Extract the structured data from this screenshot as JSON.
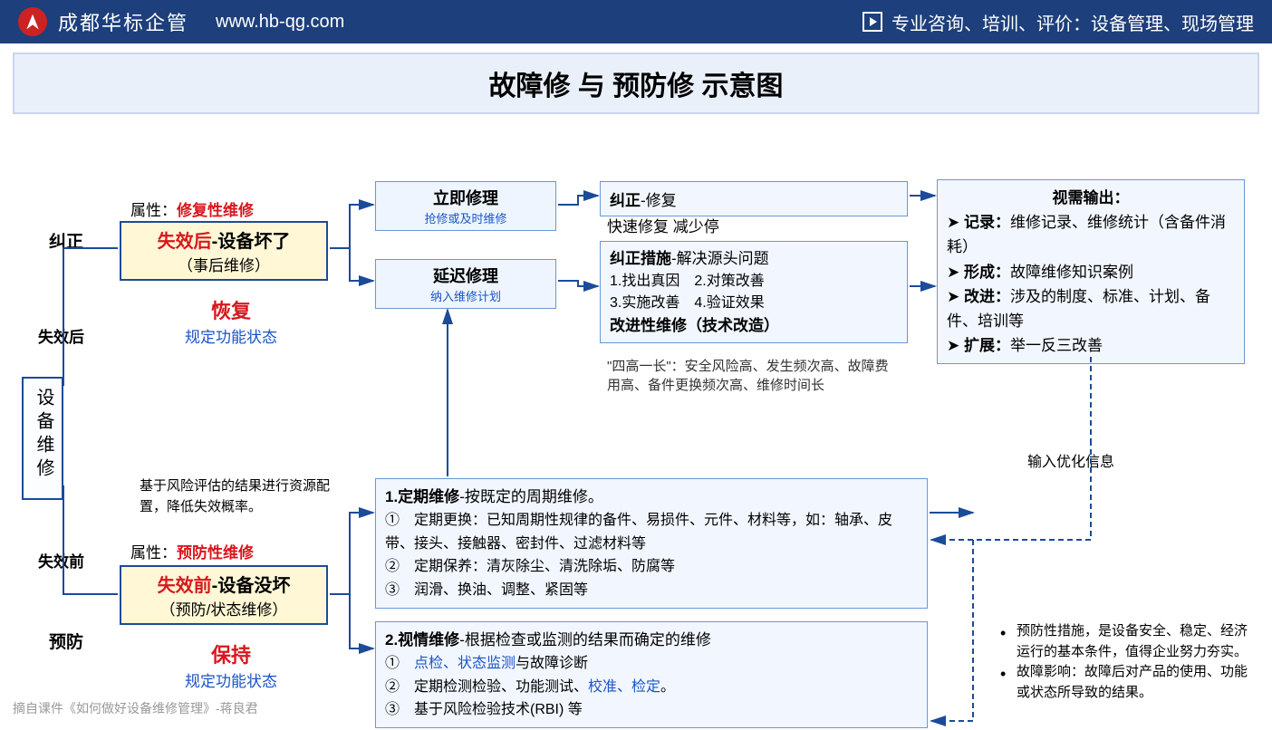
{
  "header": {
    "company": "成都华标企管",
    "url": "www.hb-qg.com",
    "right_text": "专业咨询、培训、评价：设备管理、现场管理"
  },
  "title": "故障修 与 预防修 示意图",
  "root": "设备维修",
  "branch_labels": {
    "upper": "失效后",
    "lower": "失效前"
  },
  "side_labels": {
    "correct": "纠正",
    "prevent": "预防"
  },
  "upper": {
    "attr_label": "属性：",
    "attr_value": "修复性维修",
    "box1_red": "失效后",
    "box1_tail": "-设备坏了",
    "box1_sub": "（事后维修）",
    "recover": "恢复",
    "recover_sub": "规定功能状态",
    "immediate": {
      "title": "立即修理",
      "sub": "抢修或及时维修"
    },
    "delayed": {
      "title": "延迟修理",
      "sub": "纳入维修计划"
    },
    "correct_fix_label": "纠正",
    "correct_fix_tail": "-修复",
    "correct_fix_sub": "快速修复 减少停",
    "correct_measure_label": "纠正措施",
    "correct_measure_tail": "-解决源头问题",
    "items": "1.找出真因　2.对策改善\n3.实施改善　4.验证效果",
    "improve": "改进性维修（技术改造）",
    "four_high": "\"四高一长\"：安全风险高、发生频次高、故障费用高、备件更换频次高、维修时间长"
  },
  "output": {
    "title": "视需输出：",
    "items": [
      {
        "b": "记录：",
        "t": "维修记录、维修统计（含备件消耗）"
      },
      {
        "b": "形成：",
        "t": "故障维修知识案例"
      },
      {
        "b": "改进：",
        "t": "涉及的制度、标准、计划、备件、培训等"
      },
      {
        "b": "扩展：",
        "t": "举一反三改善"
      }
    ],
    "feedback": "输入优化信息"
  },
  "lower": {
    "risk_note": "基于风险评估的结果进行资源配置，降低失效概率。",
    "attr_label": "属性：",
    "attr_value": "预防性维修",
    "box1_red": "失效前",
    "box1_tail": "-设备没坏",
    "box1_sub": "（预防/状态维修）",
    "keep": "保持",
    "keep_sub": "规定功能状态",
    "periodic": {
      "title": "1.定期维修",
      "tail": "-按既定的周期维修。",
      "l1": "①　定期更换：已知周期性规律的备件、易损件、元件、材料等，如：轴承、皮带、接头、接触器、密封件、过滤材料等",
      "l2": "②　定期保养：清灰除尘、清洗除垢、防腐等",
      "l3": "③　润滑、换油、调整、紧固等"
    },
    "condition": {
      "title": "2.视情维修",
      "tail": "-根据检查或监测的结果而确定的维修",
      "l1a": "①　",
      "l1blue": "点检、状态监测",
      "l1b": "与故障诊断",
      "l2a": "②　定期检测检验、功能测试、",
      "l2blue": "校准、检定",
      "l2b": "。",
      "l3": "③　基于风险检验技术(RBI) 等"
    }
  },
  "right_notes": [
    "预防性措施，是设备安全、稳定、经济运行的基本条件，值得企业努力夯实。",
    "故障影响：故障后对产品的使用、功能或状态所导致的结果。"
  ],
  "citation": "摘自课件《如何做好设备维修管理》-蒋良君",
  "colors": {
    "header_bg": "#1d3f7b",
    "border_blue": "#1b4b99",
    "box_yellow": "#fff7d6",
    "box_blue": "#f2f7ff",
    "red": "#d8171c",
    "blue_text": "#1a55c4"
  }
}
